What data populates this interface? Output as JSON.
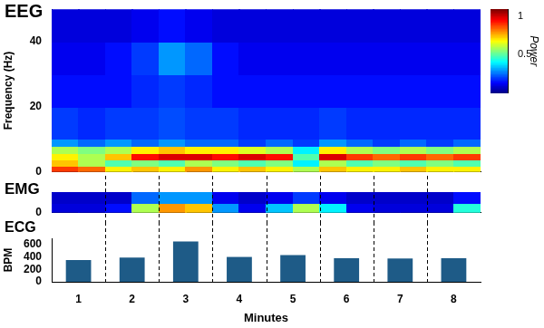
{
  "chart_data": [
    {
      "type": "heatmap",
      "title": "EEG",
      "y_label": "Frequency (Hz)",
      "x_bins": [
        0.5,
        1,
        1.5,
        2,
        2.5,
        3,
        3.5,
        4,
        4.5,
        5,
        5.5,
        6,
        6.5,
        7,
        7.5,
        8,
        8.5
      ],
      "y_bins": [
        0,
        2,
        4,
        6,
        8,
        10,
        20,
        30,
        40,
        50
      ],
      "cells": [
        [
          0.9,
          0.85,
          0.7,
          0.75,
          0.7,
          0.8,
          0.7,
          0.75,
          0.7,
          0.6,
          0.75,
          0.7,
          0.7,
          0.75,
          0.7,
          0.7
        ],
        [
          0.75,
          0.6,
          0.5,
          0.55,
          0.5,
          0.6,
          0.55,
          0.5,
          0.55,
          0.4,
          0.6,
          0.5,
          0.55,
          0.5,
          0.55,
          0.5
        ],
        [
          0.7,
          0.6,
          0.75,
          0.95,
          1.0,
          1.0,
          0.95,
          1.0,
          0.95,
          0.5,
          1.0,
          0.9,
          0.85,
          0.9,
          0.85,
          0.9
        ],
        [
          0.6,
          0.55,
          0.6,
          0.7,
          0.75,
          0.7,
          0.7,
          0.65,
          0.6,
          0.4,
          0.7,
          0.6,
          0.55,
          0.6,
          0.55,
          0.6
        ],
        [
          0.3,
          0.25,
          0.3,
          0.25,
          0.3,
          0.25,
          0.25,
          0.2,
          0.25,
          0.2,
          0.3,
          0.25,
          0.2,
          0.25,
          0.2,
          0.25
        ],
        [
          0.2,
          0.18,
          0.2,
          0.2,
          0.22,
          0.2,
          0.2,
          0.18,
          0.18,
          0.18,
          0.2,
          0.18,
          0.18,
          0.18,
          0.18,
          0.18
        ],
        [
          0.15,
          0.15,
          0.15,
          0.18,
          0.2,
          0.18,
          0.15,
          0.15,
          0.15,
          0.15,
          0.15,
          0.15,
          0.15,
          0.15,
          0.15,
          0.15
        ],
        [
          0.12,
          0.12,
          0.15,
          0.2,
          0.3,
          0.25,
          0.15,
          0.12,
          0.12,
          0.12,
          0.12,
          0.12,
          0.12,
          0.12,
          0.12,
          0.12
        ],
        [
          0.1,
          0.1,
          0.1,
          0.12,
          0.15,
          0.12,
          0.1,
          0.1,
          0.1,
          0.1,
          0.1,
          0.1,
          0.1,
          0.1,
          0.1,
          0.1
        ]
      ],
      "xlim": [
        0.5,
        8.5
      ],
      "ylim": [
        0,
        50
      ],
      "yticks": [
        0,
        20,
        40
      ],
      "tick_labels": "y",
      "grid": false,
      "colorbar": {
        "label": "Power",
        "range": [
          0,
          1.1
        ],
        "ticks": [
          0.5,
          1
        ]
      }
    },
    {
      "type": "heatmap",
      "title": "EMG",
      "x_bins": [
        0.5,
        1,
        1.5,
        2,
        2.5,
        3,
        3.5,
        4,
        4.5,
        5,
        5.5,
        6,
        6.5,
        7,
        7.5,
        8,
        8.5
      ],
      "y_bins": [
        0,
        0.5,
        1
      ],
      "cells": [
        [
          0.1,
          0.1,
          0.15,
          0.6,
          0.8,
          0.75,
          0.3,
          0.12,
          0.35,
          0.6,
          0.4,
          0.12,
          0.1,
          0.1,
          0.1,
          0.45
        ],
        [
          0.08,
          0.08,
          0.08,
          0.25,
          0.3,
          0.3,
          0.12,
          0.08,
          0.12,
          0.2,
          0.12,
          0.08,
          0.08,
          0.08,
          0.08,
          0.15
        ]
      ],
      "xlim": [
        0.5,
        8.5
      ],
      "ylim": [
        0,
        1
      ],
      "yticks": [
        0
      ],
      "tick_labels": "y",
      "grid": false
    },
    {
      "type": "bar",
      "title": "ECG",
      "y_label": "BPM",
      "x_label": "Minutes",
      "categories": [
        "1",
        "2",
        "3",
        "4",
        "5",
        "6",
        "7",
        "8"
      ],
      "values": [
        350,
        390,
        650,
        400,
        430,
        380,
        375,
        380
      ],
      "color": "#1e5b87",
      "ylim": [
        0,
        700
      ],
      "yticks": [
        0,
        200,
        400,
        600
      ],
      "grid": false
    }
  ]
}
